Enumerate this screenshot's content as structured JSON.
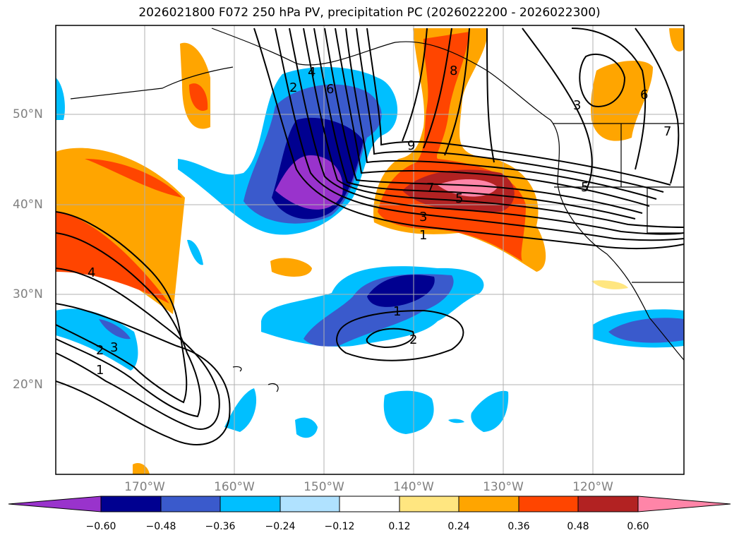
{
  "title": "2026021800 F072 250 hPa PV, precipitation PC (2026022200 - 2026022300)",
  "axes": {
    "lat_labels": [
      "50°N",
      "40°N",
      "30°N",
      "20°N"
    ],
    "lon_labels": [
      "170°W",
      "160°W",
      "150°W",
      "140°W",
      "130°W",
      "120°W"
    ]
  },
  "colorbar": {
    "ticks": [
      "−0.60",
      "−0.48",
      "−0.36",
      "−0.24",
      "−0.12",
      "0.12",
      "0.24",
      "0.36",
      "0.48",
      "0.60"
    ],
    "colors": [
      "#9933cc",
      "#000090",
      "#3a5acc",
      "#00bfff",
      "#b0e2ff",
      "#ffffff",
      "#ffe680",
      "#ffa500",
      "#ff4500",
      "#b22222",
      "#ff85a8"
    ]
  },
  "contour_labels": [
    "2",
    "4",
    "6",
    "8",
    "9",
    "7",
    "5",
    "3",
    "1",
    "3",
    "6",
    "7",
    "5",
    "4",
    "2",
    "3",
    "1",
    "1",
    "2"
  ]
}
